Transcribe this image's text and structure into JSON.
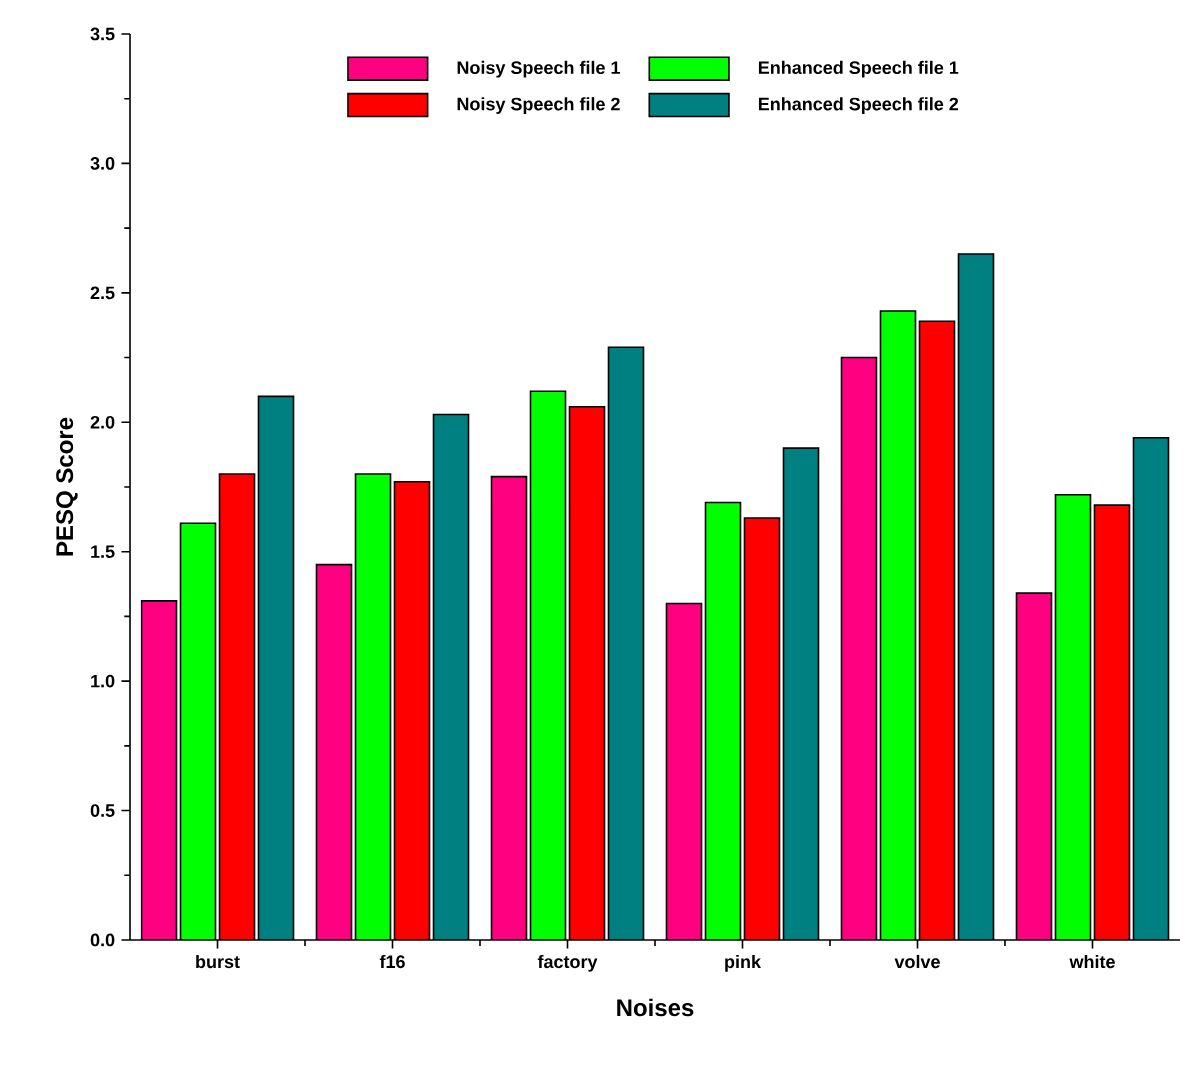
{
  "chart_data": {
    "type": "bar",
    "xlabel": "Noises",
    "ylabel": "PESQ Score",
    "categories": [
      "burst",
      "f16",
      "factory",
      "pink",
      "volve",
      "white"
    ],
    "series": [
      {
        "name": "Noisy Speech file 1",
        "color": "#ff0080",
        "values": [
          1.31,
          1.45,
          1.79,
          1.3,
          2.25,
          1.34
        ]
      },
      {
        "name": "Enhanced Speech file 1",
        "color": "#00ff00",
        "values": [
          1.61,
          1.8,
          2.12,
          1.69,
          2.43,
          1.72
        ]
      },
      {
        "name": "Noisy Speech file 2",
        "color": "#ff0000",
        "values": [
          1.8,
          1.77,
          2.06,
          1.63,
          2.39,
          1.68
        ]
      },
      {
        "name": "Enhanced Speech file 2",
        "color": "#008080",
        "values": [
          2.1,
          2.03,
          2.29,
          1.9,
          2.65,
          1.94
        ]
      }
    ],
    "ylim": [
      0,
      3.5
    ],
    "yticks": [
      {
        "value": 0,
        "label": "0.0"
      },
      0.5,
      {
        "value": 1,
        "label": "1.0"
      },
      1.5,
      {
        "value": 2,
        "label": "2.0"
      },
      2.5,
      {
        "value": 3,
        "label": "3.0"
      },
      3.5
    ],
    "legend": "top",
    "grid": false
  }
}
